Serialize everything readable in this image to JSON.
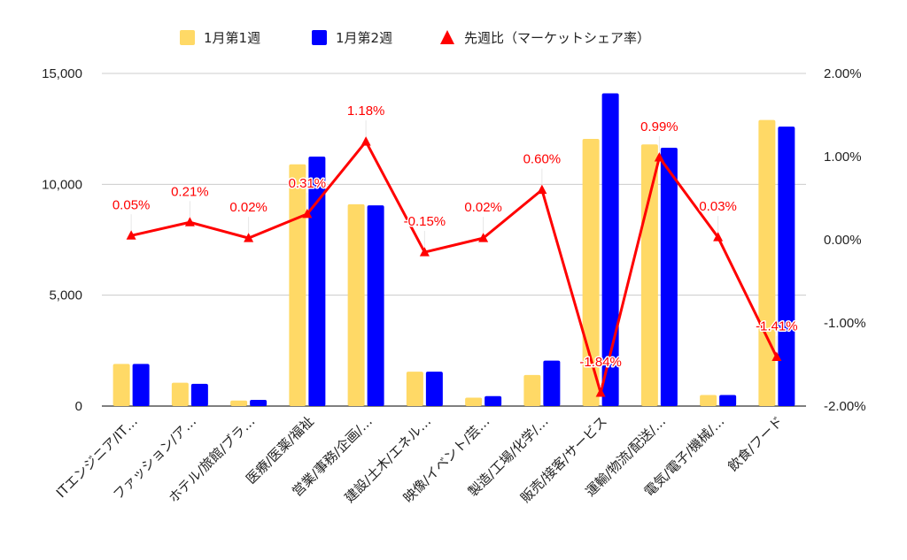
{
  "chart_data": {
    "type": "bar",
    "categories": [
      "ITエンジニア/IT…",
      "ファッション/ア…",
      "ホテル/旅館/ブラ…",
      "医療/医薬/福祉",
      "営業/事務/企画/…",
      "建設/土木/エネル…",
      "映像/イベント/芸…",
      "製造/工場/化学/…",
      "販売/接客/サービス",
      "運輸/物流/配送/…",
      "電気/電子/機械/…",
      "飲食/フード"
    ],
    "series": [
      {
        "name": "1月第1週",
        "type": "bar",
        "axis": "left",
        "color": "#ffd966",
        "values": [
          1900,
          1050,
          250,
          10900,
          9100,
          1550,
          380,
          1400,
          12050,
          11800,
          500,
          12900
        ]
      },
      {
        "name": "1月第2週",
        "type": "bar",
        "axis": "left",
        "color": "#0000ff",
        "values": [
          1900,
          1000,
          280,
          11250,
          9050,
          1550,
          450,
          2050,
          14100,
          11650,
          500,
          12600
        ]
      },
      {
        "name": "先週比（マーケットシェア率）",
        "type": "line",
        "axis": "right",
        "color": "#ff0000",
        "values": [
          0.05,
          0.21,
          0.02,
          0.31,
          1.18,
          -0.15,
          0.02,
          0.6,
          -1.84,
          0.99,
          0.03,
          -1.41
        ],
        "labels": [
          "0.05%",
          "0.21%",
          "0.02%",
          "0.31%",
          "1.18%",
          "-0.15%",
          "0.02%",
          "0.60%",
          "-1.84%",
          "0.99%",
          "0.03%",
          "-1.41%"
        ]
      }
    ],
    "y_left": {
      "min": 0,
      "max": 15000,
      "ticks": [
        0,
        5000,
        10000,
        15000
      ],
      "tick_labels": [
        "0",
        "5,000",
        "10,000",
        "15,000"
      ]
    },
    "y_right": {
      "min": -2,
      "max": 2,
      "ticks": [
        -2,
        -1,
        0,
        1,
        2
      ],
      "tick_labels": [
        "-2.00%",
        "-1.00%",
        "0.00%",
        "1.00%",
        "2.00%"
      ]
    },
    "grid": true,
    "legend_position": "top-center"
  }
}
